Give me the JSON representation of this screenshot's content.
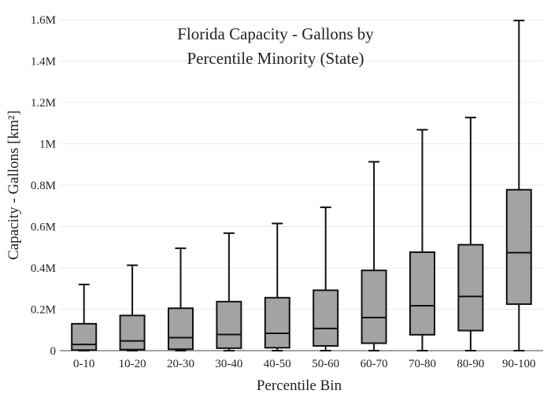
{
  "chart_data": {
    "type": "box",
    "title": [
      "Florida Capacity - Gallons by",
      "Percentile Minority (State)"
    ],
    "xlabel": "Percentile Bin",
    "ylabel": "Capacity - Gallons  [km²]",
    "ylim": [
      0,
      1600000
    ],
    "yticks": [
      0,
      200000,
      400000,
      600000,
      800000,
      1000000,
      1200000,
      1400000,
      1600000
    ],
    "ytick_labels": [
      "0",
      "0.2M",
      "0.4M",
      "0.6M",
      "0.8M",
      "1M",
      "1.2M",
      "1.4M",
      "1.6M"
    ],
    "grid": "horizontal",
    "box_color": "#a3a3a3",
    "categories": [
      "0-10",
      "10-20",
      "20-30",
      "30-40",
      "40-50",
      "50-60",
      "60-70",
      "70-80",
      "80-90",
      "90-100"
    ],
    "boxes": [
      {
        "min": 0,
        "q1": 3000,
        "median": 30000,
        "q3": 130000,
        "max": 320000
      },
      {
        "min": 0,
        "q1": 5000,
        "median": 47000,
        "q3": 170000,
        "max": 413000
      },
      {
        "min": 0,
        "q1": 7000,
        "median": 63000,
        "q3": 205000,
        "max": 495000
      },
      {
        "min": 0,
        "q1": 12000,
        "median": 78000,
        "q3": 237000,
        "max": 568000
      },
      {
        "min": 0,
        "q1": 14000,
        "median": 84000,
        "q3": 256000,
        "max": 615000
      },
      {
        "min": 0,
        "q1": 23000,
        "median": 107000,
        "q3": 292000,
        "max": 693000
      },
      {
        "min": 0,
        "q1": 36000,
        "median": 160000,
        "q3": 388000,
        "max": 913000
      },
      {
        "min": 0,
        "q1": 77000,
        "median": 217000,
        "q3": 476000,
        "max": 1068000
      },
      {
        "min": 0,
        "q1": 97000,
        "median": 262000,
        "q3": 512000,
        "max": 1127000
      },
      {
        "min": 0,
        "q1": 225000,
        "median": 474000,
        "q3": 778000,
        "max": 1596000
      }
    ]
  }
}
